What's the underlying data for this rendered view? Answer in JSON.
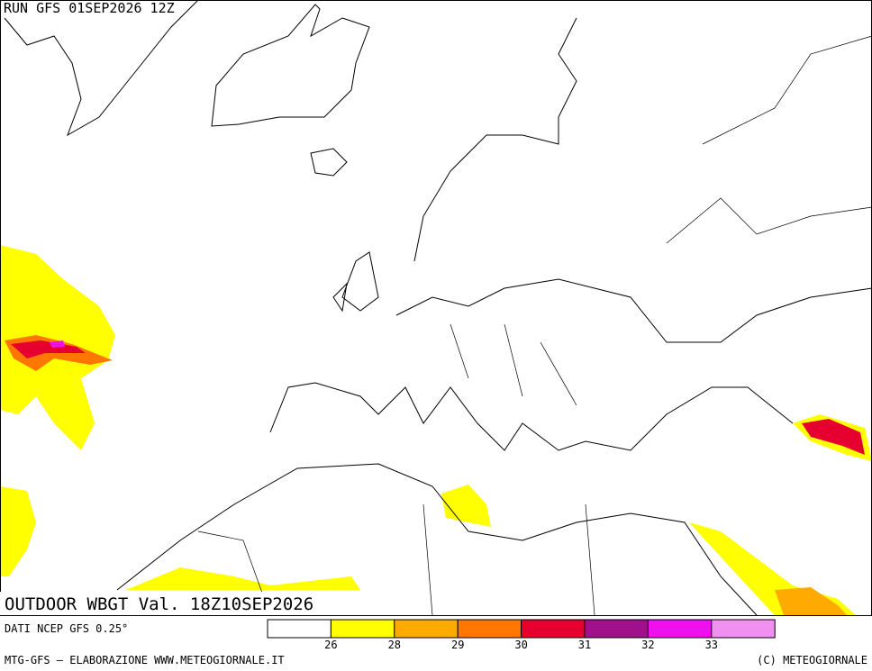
{
  "header": {
    "run": "RUN GFS 01SEP2026 12Z"
  },
  "title": "OUTDOOR WBGT Val. 18Z10SEP2026",
  "source": "DATI NCEP GFS 0.25°",
  "legend": {
    "colors": [
      "#ffffff",
      "#ffff00",
      "#ffaa00",
      "#ff7700",
      "#e60030",
      "#a0108a",
      "#ee10ee",
      "#f090f0"
    ],
    "ticks": [
      26,
      28,
      29,
      30,
      31,
      32,
      33
    ]
  },
  "footer": {
    "left": "MTG-GFS — ELABORAZIONE WWW.METEOGIORNALE.IT",
    "right": "(C) METEOGIORNALE"
  }
}
